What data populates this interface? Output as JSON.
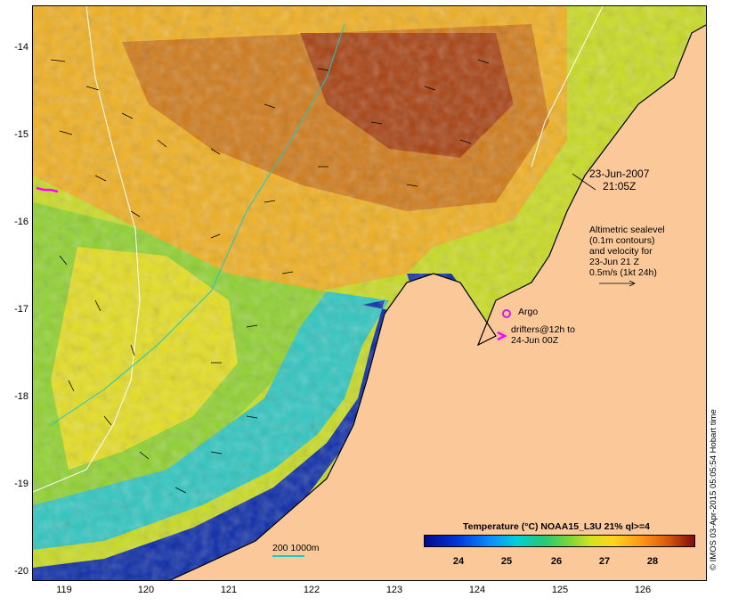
{
  "map": {
    "axes": {
      "y_ticks": [
        "-14",
        "-15",
        "-16",
        "-17",
        "-18",
        "-19",
        "-20"
      ],
      "x_ticks": [
        "119",
        "120",
        "121",
        "122",
        "123",
        "124",
        "125",
        "126"
      ]
    },
    "annotations": {
      "date_line1": "23-Jun-2007",
      "date_line2": "21:05Z",
      "altimetric_lines": [
        "Altimetric sealevel",
        "(0.1m contours)",
        "and velocity for",
        "23-Jun 21 Z",
        "0.5m/s (1kt 24h)"
      ],
      "argo": "Argo",
      "drifters_line1": "drifters@12h to",
      "drifters_line2": "24-Jun 00Z"
    },
    "colorbar": {
      "title": "Temperature (°C) NOAA15_L3U 21% ql>=4",
      "ticks": [
        "24",
        "25",
        "26",
        "27",
        "28"
      ]
    },
    "scale_label": "200  1000m",
    "copyright": "© IMOS 03-Apr-2015 05:05:54 Hobart time",
    "colors": {
      "land": "#fbc89a",
      "argo_marker": "#d020d0",
      "drifter_marker": "#ff00ff",
      "isobath": "#18c9c9",
      "contour": "#ffffff"
    }
  }
}
